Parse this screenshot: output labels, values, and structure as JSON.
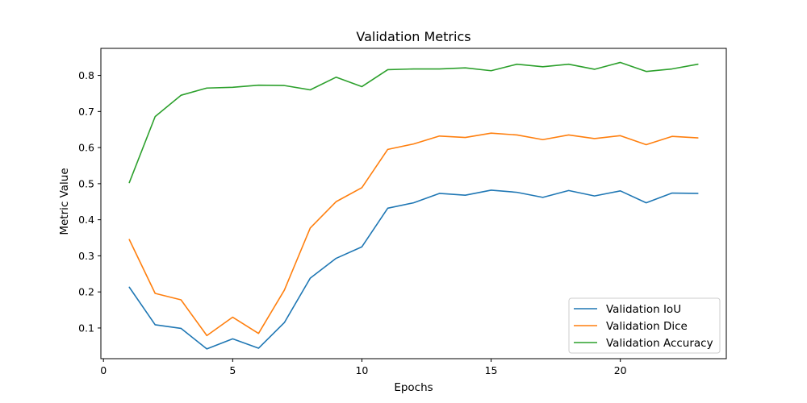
{
  "chart_data": {
    "type": "line",
    "title": "Validation Metrics",
    "xlabel": "Epochs",
    "ylabel": "Metric Value",
    "x": [
      1,
      2,
      3,
      4,
      5,
      6,
      7,
      8,
      9,
      10,
      11,
      12,
      13,
      14,
      15,
      16,
      17,
      18,
      19,
      20,
      21,
      22,
      23
    ],
    "xlim": [
      -0.1,
      24.1
    ],
    "ylim": [
      0.015,
      0.875
    ],
    "xticks": [
      0,
      5,
      10,
      15,
      20
    ],
    "yticks": [
      0.1,
      0.2,
      0.3,
      0.4,
      0.5,
      0.6,
      0.7,
      0.8
    ],
    "grid": false,
    "legend_position": "lower right",
    "series": [
      {
        "name": "Validation IoU",
        "color": "#1f77b4",
        "values": [
          0.213,
          0.109,
          0.099,
          0.042,
          0.07,
          0.044,
          0.115,
          0.238,
          0.293,
          0.325,
          0.432,
          0.447,
          0.473,
          0.468,
          0.482,
          0.476,
          0.462,
          0.481,
          0.466,
          0.48,
          0.447,
          0.474,
          0.473
        ]
      },
      {
        "name": "Validation Dice",
        "color": "#ff7f0e",
        "values": [
          0.345,
          0.196,
          0.178,
          0.079,
          0.13,
          0.085,
          0.205,
          0.377,
          0.45,
          0.489,
          0.595,
          0.61,
          0.632,
          0.628,
          0.64,
          0.635,
          0.622,
          0.635,
          0.625,
          0.633,
          0.608,
          0.631,
          0.627
        ]
      },
      {
        "name": "Validation Accuracy",
        "color": "#2ca02c",
        "values": [
          0.503,
          0.686,
          0.745,
          0.765,
          0.767,
          0.773,
          0.772,
          0.76,
          0.795,
          0.769,
          0.816,
          0.818,
          0.818,
          0.821,
          0.813,
          0.831,
          0.824,
          0.831,
          0.817,
          0.836,
          0.811,
          0.818,
          0.831
        ]
      }
    ]
  }
}
